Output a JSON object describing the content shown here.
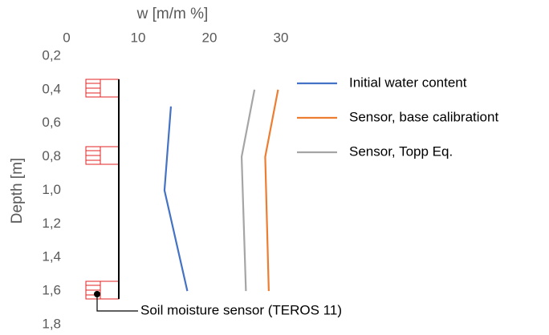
{
  "chart_data": {
    "type": "line",
    "x_label": "w [m/m %]",
    "y_label": "Depth [m]",
    "xlim": [
      0,
      30
    ],
    "xticks": [
      0,
      10,
      20,
      30
    ],
    "ylim": [
      0.2,
      1.8
    ],
    "y_inverted": true,
    "yticks": [
      {
        "value": 0.2,
        "label": "0,2"
      },
      {
        "value": 0.4,
        "label": "0,4"
      },
      {
        "value": 0.6,
        "label": "0,6"
      },
      {
        "value": 0.8,
        "label": "0,8"
      },
      {
        "value": 1.0,
        "label": "1,0"
      },
      {
        "value": 1.2,
        "label": "1,2"
      },
      {
        "value": 1.4,
        "label": "1,4"
      },
      {
        "value": 1.6,
        "label": "1,6"
      },
      {
        "value": 1.8,
        "label": "1,8"
      }
    ],
    "series": [
      {
        "name": "Initial water content",
        "color": "#4472c4",
        "x": [
          14.6,
          13.7,
          16.9
        ],
        "values": [
          0.5,
          1.0,
          1.6
        ]
      },
      {
        "name": "Sensor, base calibrationt",
        "color": "#ed7d31",
        "x": [
          29.6,
          27.8,
          28.3
        ],
        "values": [
          0.4,
          0.8,
          1.6
        ]
      },
      {
        "name": "Sensor, Topp Eq.",
        "color": "#a5a5a5",
        "x": [
          26.3,
          24.5,
          25.1
        ],
        "values": [
          0.4,
          0.8,
          1.6
        ]
      }
    ],
    "annotation": "Soil moisture sensor (TEROS 11)"
  }
}
